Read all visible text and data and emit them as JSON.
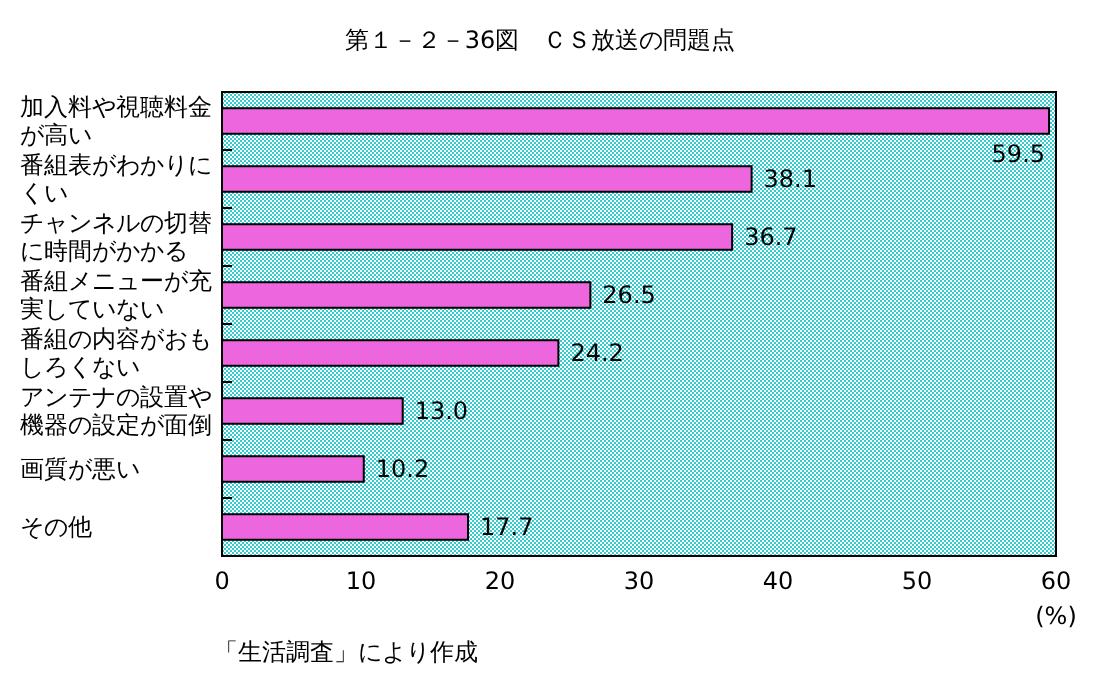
{
  "chart_data": {
    "type": "bar",
    "orientation": "horizontal",
    "title": "第１－２－36図　ＣＳ放送の問題点",
    "categories": [
      "加入料や視聴料金が高い",
      "番組表がわかりにくい",
      "チャンネルの切替に時間がかかる",
      "番組メニューが充実していない",
      "番組の内容がおもしろくない",
      "アンテナの設置や機器の設定が面倒",
      "画質が悪い",
      "その他"
    ],
    "values": [
      59.5,
      38.1,
      36.7,
      26.5,
      24.2,
      13.0,
      10.2,
      17.7
    ],
    "value_labels": [
      "59.5",
      "38.1",
      "36.7",
      "26.5",
      "24.2",
      "13.0",
      "10.2",
      "17.7"
    ],
    "color": "#ee66dd",
    "xlim": [
      0,
      60
    ],
    "xticks": [
      0,
      10,
      20,
      30,
      40,
      50,
      60
    ],
    "xlabel": "(%)",
    "annotations": [
      "「生活調査」により作成"
    ]
  }
}
